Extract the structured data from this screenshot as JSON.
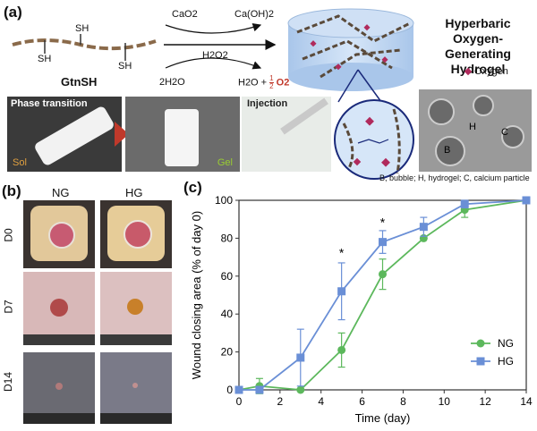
{
  "panel_a": {
    "label": "(a)",
    "polymer": {
      "name": "GtnSH",
      "sh_labels": [
        "SH",
        "SH",
        "SH"
      ]
    },
    "reaction": {
      "reagent_top": "CaO2",
      "product_top": "Ca(OH)2",
      "catalyst": "H2O2",
      "reactant_bottom": "2H2O",
      "product_bottom": "H2O + ",
      "fraction_num": "1",
      "fraction_den": "2",
      "oxygen": "O2",
      "oxygen_color": "#c0392b"
    },
    "title_lines": [
      "Hyperbaric",
      "Oxygen-Generating",
      "Hydrogel"
    ],
    "legend_oxygen": "Oxygen",
    "photos": {
      "phase_transition": "Phase transition",
      "sol": "Sol",
      "gel": "Gel",
      "injection": "Injection"
    },
    "micro_labels": {
      "h": "H",
      "c": "C",
      "b": "B"
    },
    "micro_caption": "B, bubble; H, hydrogel; C, calcium particle"
  },
  "panel_b": {
    "label": "(b)",
    "columns": [
      "NG",
      "HG"
    ],
    "rows": [
      "D0",
      "D7",
      "D14"
    ]
  },
  "chart_data": {
    "label": "(c)",
    "type": "line",
    "xlabel": "Time (day)",
    "ylabel": "Wound closing area (% of day 0)",
    "xlim": [
      0,
      14
    ],
    "ylim": [
      0,
      100
    ],
    "xticks": [
      0,
      2,
      4,
      6,
      8,
      10,
      12,
      14
    ],
    "yticks": [
      0,
      20,
      40,
      60,
      80,
      100
    ],
    "grid": false,
    "legend_position": "bottom-right",
    "series": [
      {
        "name": "NG",
        "color": "#5cb85c",
        "marker": "circle",
        "x": [
          0,
          1,
          3,
          5,
          7,
          9,
          11,
          14
        ],
        "y": [
          0,
          2,
          0,
          21,
          61,
          80,
          95,
          100
        ],
        "err": [
          0,
          4,
          0,
          9,
          8,
          0,
          4,
          0
        ]
      },
      {
        "name": "HG",
        "color": "#6a8fd6",
        "marker": "square",
        "x": [
          0,
          1,
          3,
          5,
          7,
          9,
          11,
          14
        ],
        "y": [
          0,
          0,
          17,
          52,
          78,
          86,
          98,
          100
        ],
        "err": [
          0,
          0,
          15,
          15,
          6,
          5,
          2,
          0
        ]
      }
    ],
    "annotations": [
      {
        "text": "*",
        "x": 5,
        "y": 70
      },
      {
        "text": "*",
        "x": 7,
        "y": 86
      }
    ]
  }
}
